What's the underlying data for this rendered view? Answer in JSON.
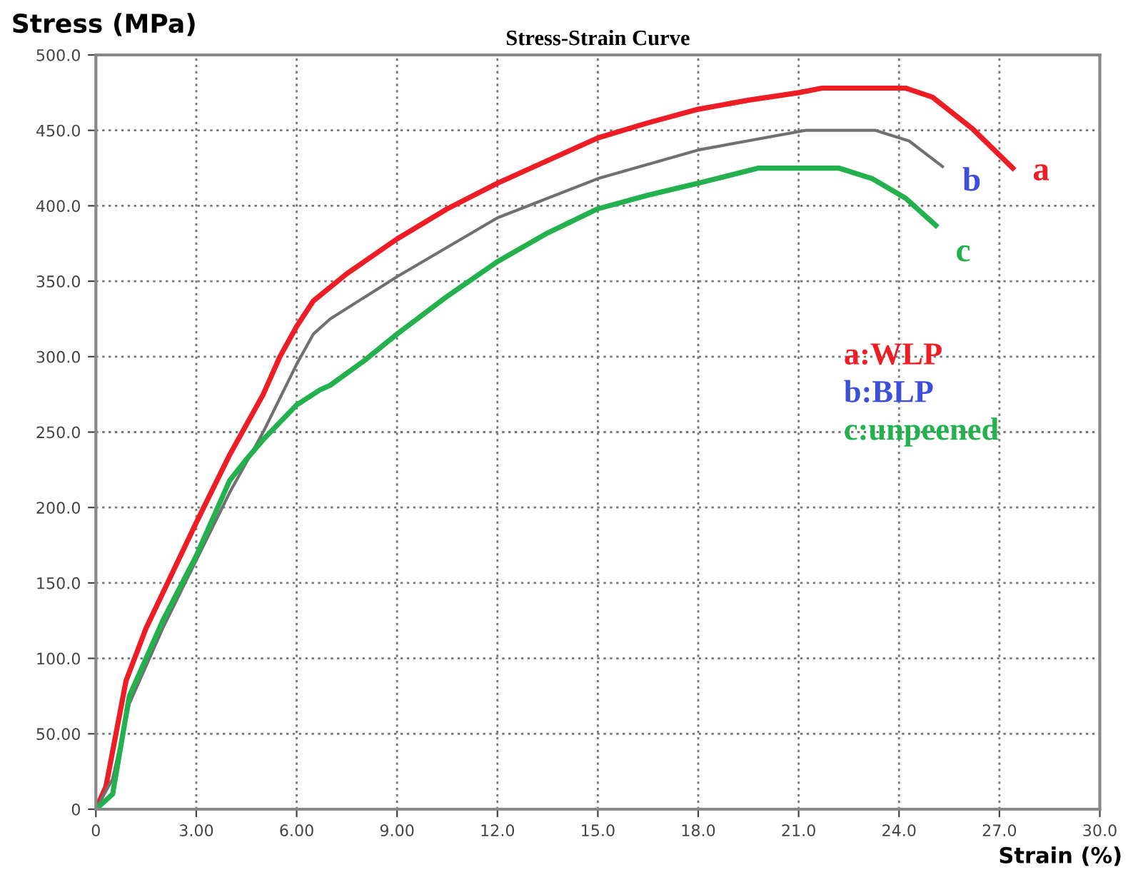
{
  "chart_data": {
    "type": "line",
    "title": "Stress-Strain Curve",
    "xlabel": "Strain (%)",
    "ylabel": "Stress (MPa)",
    "xlim": [
      0,
      30
    ],
    "xticks": [
      0,
      {
        "value": 3,
        "label": "3.00"
      },
      {
        "value": 6,
        "label": "6.00"
      },
      {
        "value": 9,
        "label": "9.00"
      },
      {
        "value": 12,
        "label": "12.0"
      },
      {
        "value": 15,
        "label": "15.0"
      },
      {
        "value": 18,
        "label": "18.0"
      },
      {
        "value": 21,
        "label": "21.0"
      },
      {
        "value": 24,
        "label": "24.0"
      },
      {
        "value": 27,
        "label": "27.0"
      },
      {
        "value": 30,
        "label": "30.0"
      }
    ],
    "ylim": [
      0,
      500
    ],
    "yticks": [
      0,
      {
        "value": 50,
        "label": "50.00"
      },
      {
        "value": 100,
        "label": "100.0"
      },
      {
        "value": 150,
        "label": "150.0"
      },
      {
        "value": 200,
        "label": "200.0"
      },
      {
        "value": 250,
        "label": "250.0"
      },
      {
        "value": 300,
        "label": "300.0"
      },
      {
        "value": 350,
        "label": "350.0"
      },
      {
        "value": 400,
        "label": "400.0"
      },
      {
        "value": 450,
        "label": "450.0"
      },
      {
        "value": 500,
        "label": "500.0"
      }
    ],
    "grid": true,
    "marker": "none",
    "line_style": "solid",
    "legend": false,
    "annotations": [
      "a:WLP",
      "b:BLP",
      "c:unpeened"
    ],
    "series": [
      {
        "name": "a",
        "color": "#ee1c25",
        "x": [
          0,
          0.3,
          0.9,
          1.5,
          3,
          4,
          5,
          5.5,
          6,
          6.5,
          7.5,
          9,
          10.5,
          12,
          13.5,
          15,
          16.5,
          18,
          19.5,
          21,
          21.7,
          24.2,
          25,
          26.2,
          27.4
        ],
        "values": [
          0,
          15,
          85,
          120,
          190,
          235,
          275,
          300,
          320,
          337,
          355,
          378,
          398,
          415,
          430,
          445,
          455,
          464,
          470,
          475,
          478,
          478,
          472,
          451,
          425
        ]
      },
      {
        "name": "b",
        "color": "#707070",
        "x": [
          0,
          0.5,
          1,
          2,
          3,
          4,
          5,
          6,
          6.5,
          7,
          9,
          12,
          15,
          18,
          21.2,
          23.3,
          24.3,
          25.3
        ],
        "values": [
          0,
          20,
          70,
          120,
          165,
          210,
          250,
          295,
          315,
          325,
          353,
          392,
          418,
          437,
          450,
          450,
          443,
          426
        ]
      },
      {
        "name": "c",
        "color": "#22b14c",
        "x": [
          0,
          0.5,
          1,
          1.5,
          2,
          3,
          4,
          4.5,
          5,
          6,
          6.7,
          7,
          8,
          9,
          10.5,
          12,
          13.5,
          15,
          16.5,
          18,
          19.8,
          22.2,
          23.2,
          24.2,
          25.1
        ],
        "values": [
          0,
          10,
          75,
          100,
          125,
          168,
          218,
          232,
          245,
          268,
          278,
          281,
          297,
          315,
          340,
          363,
          382,
          398,
          407,
          415,
          425,
          425,
          418,
          405,
          387
        ]
      }
    ]
  }
}
